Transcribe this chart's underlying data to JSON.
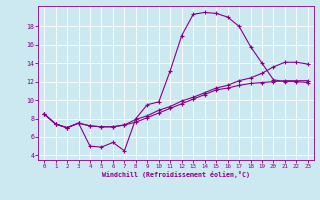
{
  "xlabel": "Windchill (Refroidissement éolien,°C)",
  "background_color": "#cce8f0",
  "line_color": "#880088",
  "xlim": [
    -0.5,
    23.5
  ],
  "ylim": [
    3.5,
    20.2
  ],
  "yticks": [
    4,
    6,
    8,
    10,
    12,
    14,
    16,
    18
  ],
  "xticks": [
    0,
    1,
    2,
    3,
    4,
    5,
    6,
    7,
    8,
    9,
    10,
    11,
    12,
    13,
    14,
    15,
    16,
    17,
    18,
    19,
    20,
    21,
    22,
    23
  ],
  "line1_x": [
    0,
    1,
    2,
    3,
    4,
    5,
    6,
    7,
    8,
    9,
    10,
    11,
    12,
    13,
    14,
    15,
    16,
    17,
    18,
    19,
    20,
    21,
    22,
    23
  ],
  "line1_y": [
    8.5,
    7.4,
    7.0,
    7.5,
    5.0,
    4.9,
    5.4,
    4.5,
    8.0,
    9.5,
    9.8,
    13.2,
    17.0,
    19.3,
    19.5,
    19.4,
    19.0,
    18.0,
    15.8,
    14.0,
    12.2,
    12.0,
    12.0,
    11.9
  ],
  "line2_x": [
    0,
    1,
    2,
    3,
    4,
    5,
    6,
    7,
    8,
    9,
    10,
    11,
    12,
    13,
    14,
    15,
    16,
    17,
    18,
    19,
    20,
    21,
    22,
    23
  ],
  "line2_y": [
    8.5,
    7.4,
    7.0,
    7.5,
    7.2,
    7.1,
    7.1,
    7.3,
    7.6,
    8.1,
    8.6,
    9.1,
    9.6,
    10.1,
    10.6,
    11.1,
    11.3,
    11.6,
    11.8,
    11.9,
    12.0,
    12.1,
    12.1,
    12.1
  ],
  "line3_x": [
    0,
    1,
    2,
    3,
    4,
    5,
    6,
    7,
    8,
    9,
    10,
    11,
    12,
    13,
    14,
    15,
    16,
    17,
    18,
    19,
    20,
    21,
    22,
    23
  ],
  "line3_y": [
    8.5,
    7.4,
    7.0,
    7.5,
    7.2,
    7.1,
    7.1,
    7.3,
    7.9,
    8.3,
    8.9,
    9.3,
    9.9,
    10.3,
    10.8,
    11.3,
    11.6,
    12.1,
    12.4,
    12.9,
    13.6,
    14.1,
    14.1,
    13.9
  ]
}
